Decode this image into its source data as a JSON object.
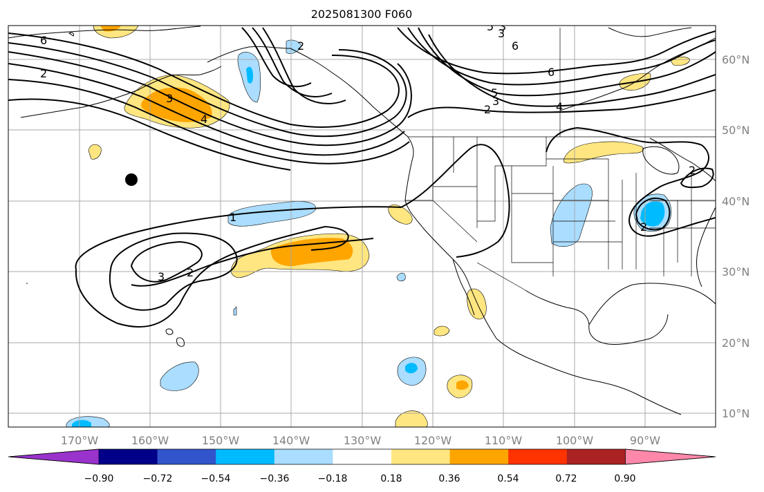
{
  "map": {
    "title": "2025081300 F060",
    "lat_labels": [
      "60°N",
      "50°N",
      "40°N",
      "30°N",
      "20°N",
      "10°N"
    ],
    "lon_labels": [
      "170°W",
      "160°W",
      "150°W",
      "140°W",
      "130°W",
      "120°W",
      "110°W",
      "100°W",
      "90°W"
    ],
    "contour_labels": [
      "6",
      "2",
      "3",
      "4",
      "5",
      "3",
      "2",
      "2",
      "3",
      "6",
      "6",
      "5",
      "3",
      "2",
      "4",
      "1",
      "3",
      "2",
      "2"
    ]
  },
  "colorbar": {
    "tick_labels": [
      "−0.90",
      "−0.72",
      "−0.54",
      "−0.36",
      "−0.18",
      "0.18",
      "0.36",
      "0.54",
      "0.72",
      "0.90"
    ],
    "colors": [
      "#9933cc",
      "#000088",
      "#3355cc",
      "#00bbff",
      "#aaddff",
      "#ffffff",
      "#ffe680",
      "#ffa500",
      "#ff3300",
      "#aa2222",
      "#ff88aa"
    ]
  },
  "fill_colors": {
    "light_blue": "#aaddff",
    "blue": "#00bbff",
    "yellow": "#ffe680",
    "orange": "#ffa500"
  },
  "marker": {
    "name": "black-dot",
    "color": "#000000"
  }
}
